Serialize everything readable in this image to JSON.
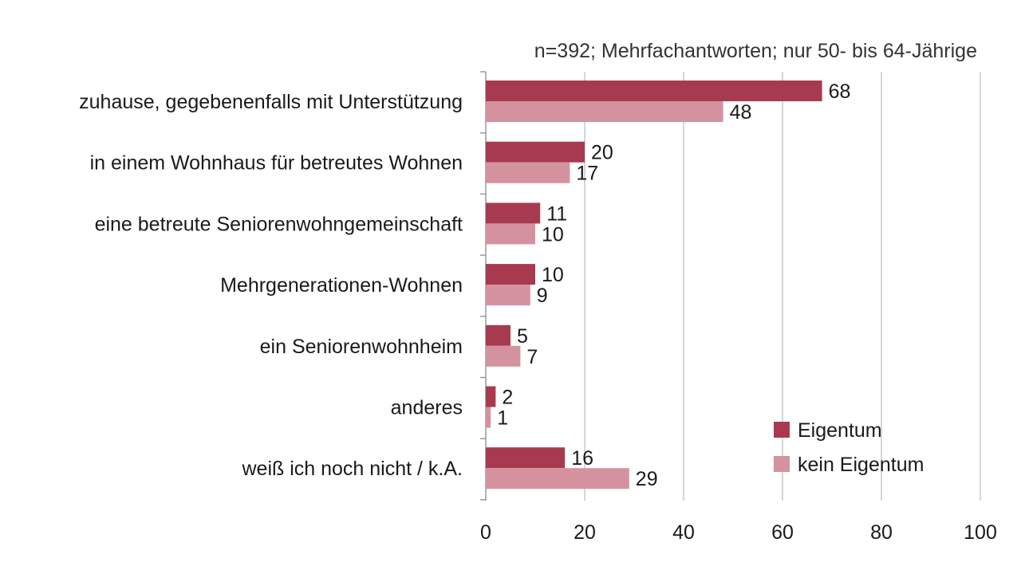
{
  "chart_data": {
    "type": "bar",
    "orientation": "horizontal",
    "note": "n=392; Mehrfachantworten; nur 50- bis 64-Jährige",
    "categories": [
      "zuhause, gegebenenfalls mit Unterstützung",
      "in einem Wohnhaus für betreutes Wohnen",
      "eine betreute Seniorenwohngemeinschaft",
      "Mehrgenerationen-Wohnen",
      "ein Seniorenwohnheim",
      "anderes",
      "weiß ich noch nicht / k.A."
    ],
    "series": [
      {
        "name": "Eigentum",
        "color": "#a83a50",
        "values": [
          68,
          20,
          11,
          10,
          5,
          2,
          16
        ]
      },
      {
        "name": "kein Eigentum",
        "color": "#d4929f",
        "values": [
          48,
          17,
          10,
          9,
          7,
          1,
          29
        ]
      }
    ],
    "xlim": [
      0,
      100
    ],
    "xticks": [
      "0",
      "20",
      "40",
      "60",
      "80",
      "100"
    ],
    "grid": true,
    "legend_position": "bottom-right"
  }
}
